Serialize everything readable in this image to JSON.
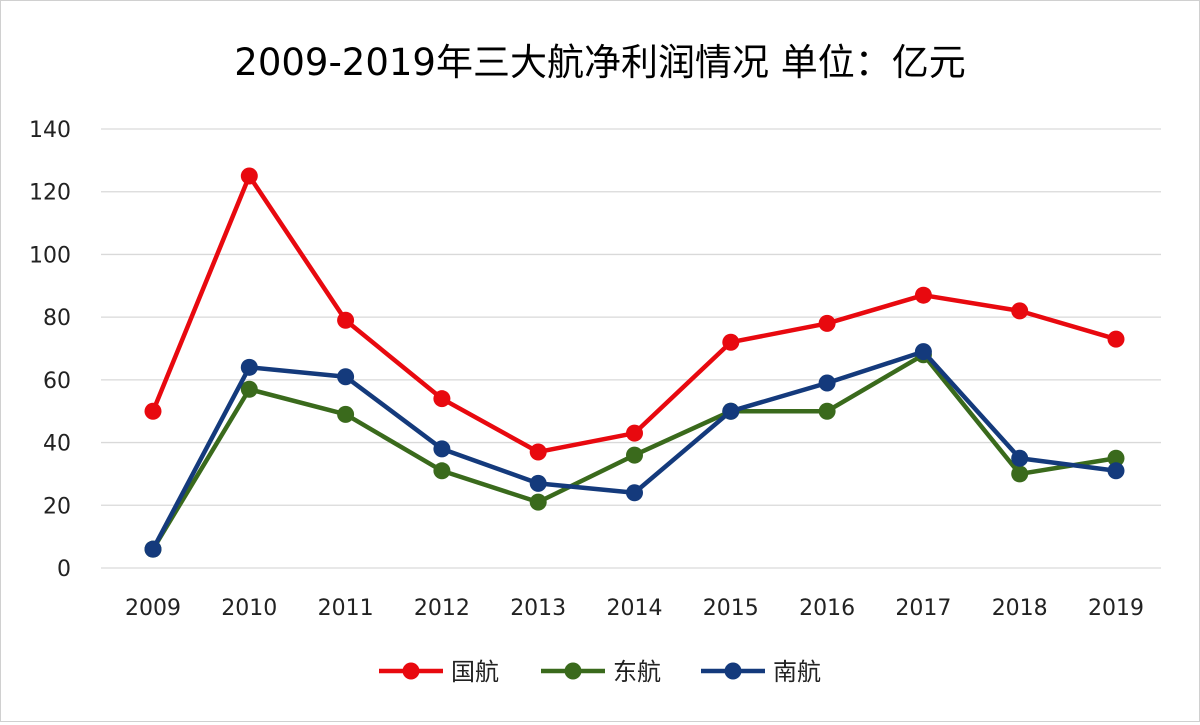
{
  "chart_data": {
    "type": "line",
    "title": "2009-2019年三大航净利润情况 单位：亿元",
    "categories": [
      "2009",
      "2010",
      "2011",
      "2012",
      "2013",
      "2014",
      "2015",
      "2016",
      "2017",
      "2018",
      "2019"
    ],
    "ylim": [
      0,
      140
    ],
    "yticks": [
      0,
      20,
      40,
      60,
      80,
      100,
      120,
      140
    ],
    "grid": true,
    "legend_position": "bottom",
    "series": [
      {
        "name": "国航",
        "color": "#e8090f",
        "values": [
          50,
          125,
          79,
          54,
          37,
          43,
          72,
          78,
          87,
          82,
          73
        ]
      },
      {
        "name": "东航",
        "color": "#3a6a1c",
        "values": [
          6,
          57,
          49,
          31,
          21,
          36,
          50,
          50,
          68,
          30,
          35
        ]
      },
      {
        "name": "南航",
        "color": "#143a7c",
        "values": [
          6,
          64,
          61,
          38,
          27,
          24,
          50,
          59,
          69,
          35,
          31
        ]
      }
    ]
  }
}
